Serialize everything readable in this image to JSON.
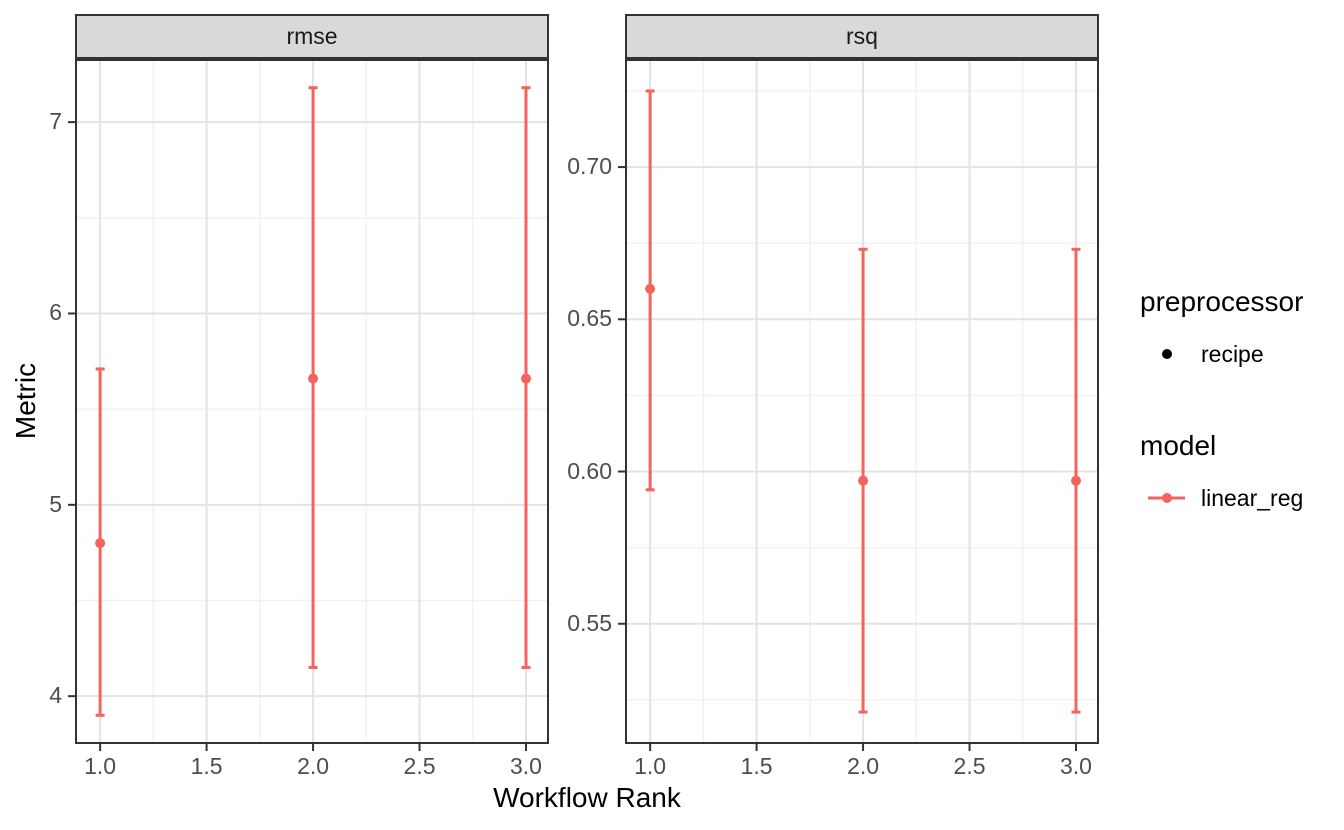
{
  "axes": {
    "x_title": "Workflow Rank",
    "y_title": "Metric"
  },
  "legend": {
    "groups": [
      {
        "title": "preprocessor",
        "items": [
          {
            "label": "recipe",
            "marker": "point"
          }
        ]
      },
      {
        "title": "model",
        "items": [
          {
            "label": "linear_reg",
            "marker": "point-line"
          }
        ]
      }
    ]
  },
  "colors": {
    "model_series": "#F4635C",
    "recipe_point": "#000000",
    "strip_bg": "#D9D9D9",
    "panel_border": "#333333",
    "grid_major": "#E3E3E3",
    "grid_minor": "#F1F1F1",
    "tick_mark": "#333333",
    "tick_text": "#4D4D4D"
  },
  "chart_data": [
    {
      "type": "scatter",
      "facet": "rmse",
      "series": "linear_reg",
      "preprocessor": "recipe",
      "x": [
        1.0,
        2.0,
        3.0
      ],
      "y": [
        4.8,
        5.66,
        5.66
      ],
      "ymin": [
        3.9,
        4.15,
        4.15
      ],
      "ymax": [
        5.71,
        7.18,
        7.18
      ],
      "x_ticks": [
        1.0,
        1.5,
        2.0,
        2.5,
        3.0
      ],
      "x_tick_labels": [
        "1.0",
        "1.5",
        "2.0",
        "2.5",
        "3.0"
      ],
      "y_ticks": [
        4,
        5,
        6,
        7
      ],
      "y_tick_labels": [
        "4",
        "5",
        "6",
        "7"
      ],
      "xlim": [
        0.882,
        3.108
      ],
      "ylim": [
        3.75,
        7.33
      ],
      "xlabel": "Workflow Rank",
      "ylabel": "Metric",
      "grid": "major+minor",
      "legend_position": "right"
    },
    {
      "type": "scatter",
      "facet": "rsq",
      "series": "linear_reg",
      "preprocessor": "recipe",
      "x": [
        1.0,
        2.0,
        3.0
      ],
      "y": [
        0.66,
        0.597,
        0.597
      ],
      "ymin": [
        0.594,
        0.521,
        0.521
      ],
      "ymax": [
        0.725,
        0.673,
        0.673
      ],
      "x_ticks": [
        1.0,
        1.5,
        2.0,
        2.5,
        3.0
      ],
      "x_tick_labels": [
        "1.0",
        "1.5",
        "2.0",
        "2.5",
        "3.0"
      ],
      "y_ticks": [
        0.55,
        0.6,
        0.65,
        0.7
      ],
      "y_tick_labels": [
        "0.55",
        "0.60",
        "0.65",
        "0.70"
      ],
      "xlim": [
        0.882,
        3.108
      ],
      "ylim": [
        0.5105,
        0.7355
      ],
      "xlabel": "Workflow Rank",
      "ylabel": "Metric",
      "grid": "major+minor",
      "legend_position": "right"
    }
  ]
}
